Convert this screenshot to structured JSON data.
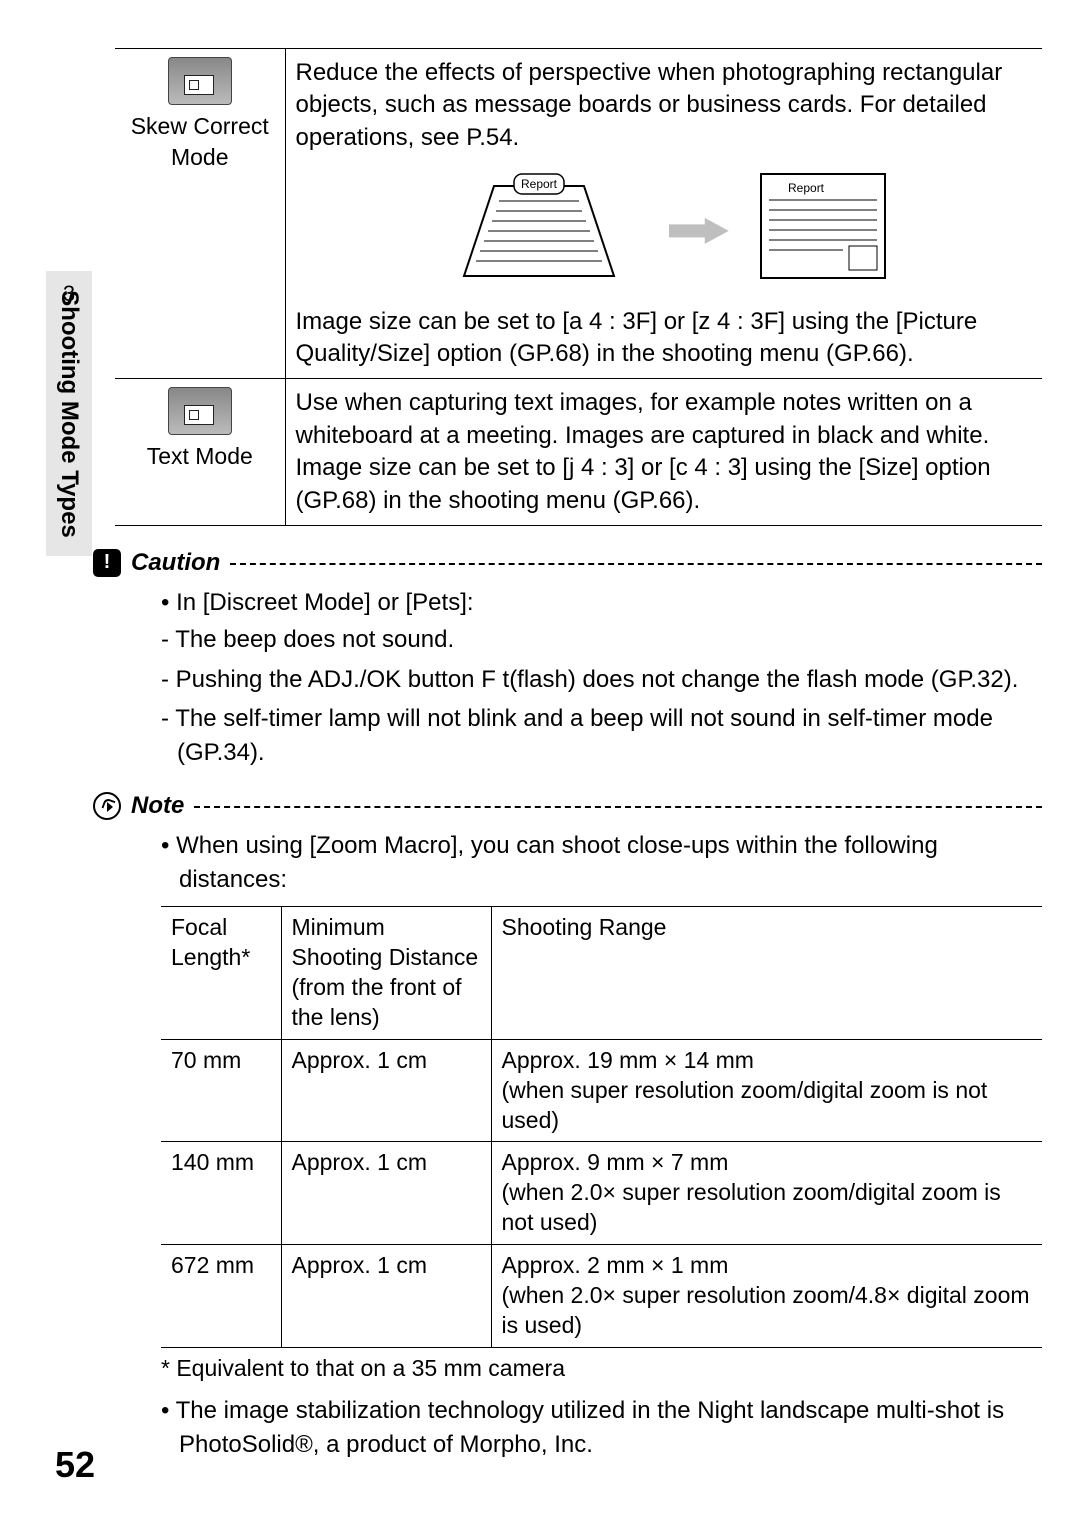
{
  "page_number": "52",
  "side_tab": {
    "number": "3",
    "label": "Shooting Mode Types"
  },
  "modes": {
    "skew": {
      "name": "Skew Correct Mode",
      "desc_top": "Reduce the effects of perspective when photographing rectangular objects, such as message boards or business cards. For detailed operations, see P.54.",
      "diagram_label_left": "Report",
      "diagram_label_right": "Report",
      "desc_bottom": "Image size can be set to [a 4 : 3F] or [z 4 : 3F] using the [Picture Quality/Size] option (GP.68) in the shooting menu (GP.66)."
    },
    "text": {
      "name": "Text Mode",
      "desc": "Use when capturing text images, for example notes written on a whiteboard at a meeting. Images are captured in black and white. Image size can be set to [j 4 : 3] or [c 4 : 3] using the [Size] option (GP.68) in the shooting menu (GP.66)."
    }
  },
  "caution": {
    "title": "Caution",
    "intro": "In [Discreet Mode] or [Pets]:",
    "items": [
      "The beep does not sound.",
      "Pushing the ADJ./OK button F t(flash) does not change the flash mode (GP.32).",
      "The self-timer lamp will not blink and a beep will not sound in self-timer mode (GP.34)."
    ]
  },
  "note": {
    "title": "Note",
    "intro": "When using [Zoom Macro], you can shoot close-ups within the following distances:",
    "table": {
      "headers": [
        "Focal Length*",
        "Minimum Shooting Distance (from the front of the lens)",
        "Shooting Range"
      ],
      "rows": [
        {
          "fl": "70 mm",
          "min": "Approx. 1 cm",
          "range": "Approx. 19 mm × 14 mm\n(when super resolution zoom/digital zoom is not used)"
        },
        {
          "fl": "140 mm",
          "min": "Approx. 1 cm",
          "range": "Approx. 9 mm × 7 mm\n(when 2.0× super resolution zoom/digital zoom is not used)"
        },
        {
          "fl": "672 mm",
          "min": "Approx. 1 cm",
          "range": "Approx. 2 mm × 1 mm\n(when 2.0× super resolution zoom/4.8× digital zoom is used)"
        }
      ],
      "footnote": "* Equivalent to that on a 35 mm camera"
    },
    "trailer": "The image stabilization technology utilized in the Night landscape multi-shot is PhotoSolid®, a product of Morpho, Inc."
  },
  "colors": {
    "text": "#000000",
    "background": "#ffffff",
    "tab_bg": "#e6e6e6",
    "arrow": "#bfbfbf",
    "border": "#000000"
  }
}
